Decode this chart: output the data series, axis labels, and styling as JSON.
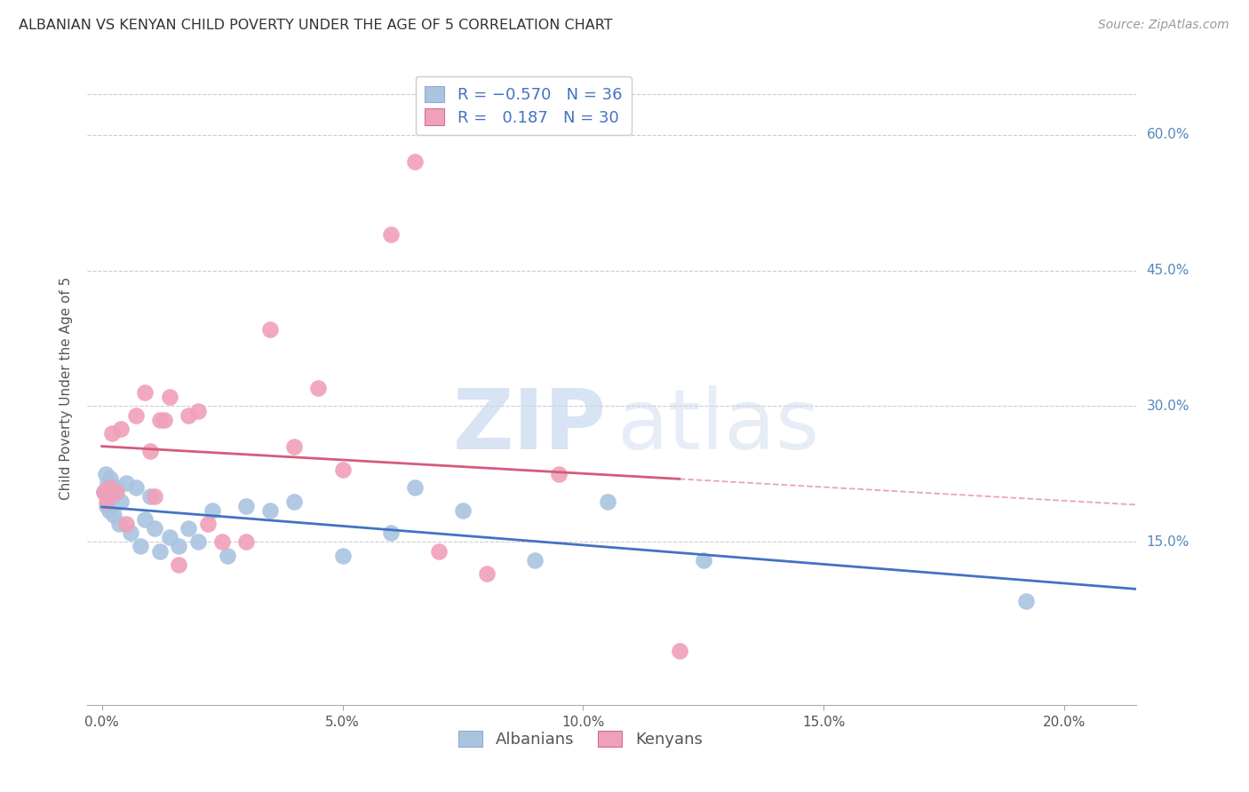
{
  "title": "ALBANIAN VS KENYAN CHILD POVERTY UNDER THE AGE OF 5 CORRELATION CHART",
  "source": "Source: ZipAtlas.com",
  "xlabel_ticks": [
    "0.0%",
    "5.0%",
    "10.0%",
    "15.0%",
    "20.0%"
  ],
  "xlabel_vals": [
    0.0,
    5.0,
    10.0,
    15.0,
    20.0
  ],
  "ylabel": "Child Poverty Under the Age of 5",
  "right_yticks": [
    15.0,
    30.0,
    45.0,
    60.0
  ],
  "right_ytick_labels": [
    "15.0%",
    "30.0%",
    "45.0%",
    "60.0%"
  ],
  "xmin": -0.3,
  "xmax": 21.5,
  "ymin": -3.0,
  "ymax": 67.0,
  "watermark_zip": "ZIP",
  "watermark_atlas": "atlas",
  "albanian_x": [
    0.05,
    0.1,
    0.12,
    0.15,
    0.18,
    0.2,
    0.25,
    0.3,
    0.35,
    0.4,
    0.5,
    0.6,
    0.7,
    0.8,
    0.9,
    1.0,
    1.1,
    1.2,
    1.4,
    1.6,
    1.8,
    2.0,
    2.3,
    2.6,
    3.0,
    3.5,
    4.0,
    5.0,
    6.0,
    6.5,
    7.5,
    9.0,
    10.5,
    12.5,
    19.2,
    0.08
  ],
  "albanian_y": [
    20.5,
    19.0,
    21.5,
    18.5,
    22.0,
    20.0,
    18.0,
    21.0,
    17.0,
    19.5,
    21.5,
    16.0,
    21.0,
    14.5,
    17.5,
    20.0,
    16.5,
    14.0,
    15.5,
    14.5,
    16.5,
    15.0,
    18.5,
    13.5,
    19.0,
    18.5,
    19.5,
    13.5,
    16.0,
    21.0,
    18.5,
    13.0,
    19.5,
    13.0,
    8.5,
    22.5
  ],
  "kenyan_x": [
    0.05,
    0.1,
    0.15,
    0.2,
    0.3,
    0.5,
    0.7,
    0.9,
    1.0,
    1.1,
    1.2,
    1.4,
    1.6,
    1.8,
    2.0,
    2.2,
    2.5,
    3.0,
    3.5,
    4.0,
    4.5,
    5.0,
    6.0,
    6.5,
    7.0,
    8.0,
    9.5,
    12.0,
    1.3,
    0.4
  ],
  "kenyan_y": [
    20.5,
    19.5,
    21.0,
    27.0,
    20.5,
    17.0,
    29.0,
    31.5,
    25.0,
    20.0,
    28.5,
    31.0,
    12.5,
    29.0,
    29.5,
    17.0,
    15.0,
    15.0,
    38.5,
    25.5,
    32.0,
    23.0,
    49.0,
    57.0,
    14.0,
    11.5,
    22.5,
    3.0,
    28.5,
    27.5
  ],
  "blue_line_color": "#4472c4",
  "pink_line_color": "#d45c7a",
  "blue_dot_color": "#aac4e0",
  "pink_dot_color": "#f0a0b8",
  "grid_color": "#cccccc",
  "bg_color": "#ffffff",
  "title_color": "#333333",
  "right_label_color": "#5588bb",
  "source_color": "#999999",
  "watermark_color": "#c8d8ee"
}
